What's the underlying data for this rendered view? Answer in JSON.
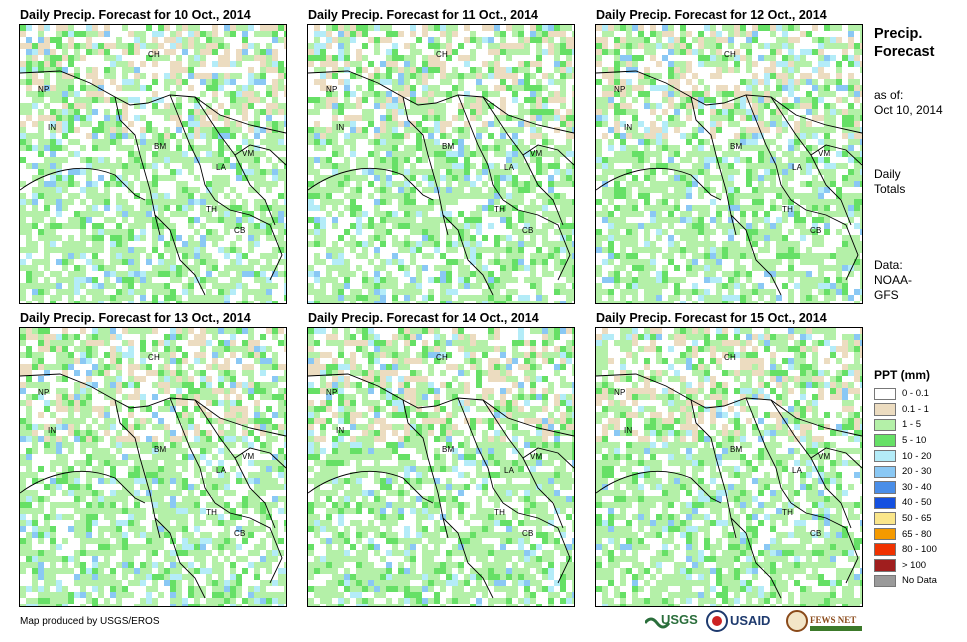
{
  "panels": [
    {
      "title": "Daily Precip. Forecast for 10 Oct., 2014",
      "labels": [
        "CH",
        "NP",
        "IN",
        "BM",
        "VM",
        "LA",
        "TH",
        "CB"
      ]
    },
    {
      "title": "Daily Precip. Forecast for 11 Oct., 2014",
      "labels": [
        "CH",
        "NP",
        "IN",
        "BM",
        "VM",
        "LA",
        "TH",
        "CB"
      ]
    },
    {
      "title": "Daily Precip. Forecast for 12 Oct., 2014",
      "labels": [
        "CH",
        "NP",
        "IN",
        "BM",
        "VM",
        "LA",
        "TH",
        "CB"
      ]
    },
    {
      "title": "Daily Precip. Forecast for 13 Oct., 2014",
      "labels": [
        "CH",
        "NP",
        "IN",
        "BM",
        "VM",
        "LA",
        "TH",
        "CB"
      ]
    },
    {
      "title": "Daily Precip. Forecast for 14 Oct., 2014",
      "labels": [
        "CH",
        "NP",
        "IN",
        "BM",
        "VM",
        "LA",
        "TH",
        "CB"
      ]
    },
    {
      "title": "Daily Precip. Forecast for 15 Oct., 2014",
      "labels": [
        "CH",
        "NP",
        "IN",
        "BM",
        "VM",
        "LA",
        "TH",
        "CB"
      ]
    }
  ],
  "sidebar": {
    "title_line1": "Precip.",
    "title_line2": "Forecast",
    "asof_line1": "as of:",
    "asof_line2": "Oct 10, 2014",
    "totals_line1": "Daily",
    "totals_line2": "Totals",
    "data_line1": "Data:",
    "data_line2": "NOAA-",
    "data_line3": "GFS"
  },
  "legend": {
    "title": "PPT (mm)",
    "items": [
      {
        "label": "0 - 0.1",
        "color": "#ffffff"
      },
      {
        "label": "0.1 - 1",
        "color": "#ecdcc0"
      },
      {
        "label": "1 - 5",
        "color": "#b4f0a8"
      },
      {
        "label": "5 - 10",
        "color": "#66e066"
      },
      {
        "label": "10 - 20",
        "color": "#b4ecf8"
      },
      {
        "label": "20 - 30",
        "color": "#8ac8f4"
      },
      {
        "label": "30 - 40",
        "color": "#4a8ee8"
      },
      {
        "label": "40 - 50",
        "color": "#1450e0"
      },
      {
        "label": "50 - 65",
        "color": "#fae68a"
      },
      {
        "label": "65 - 80",
        "color": "#f59a00"
      },
      {
        "label": "80 - 100",
        "color": "#f03200"
      },
      {
        "label": "> 100",
        "color": "#a01e1e"
      },
      {
        "label": "No Data",
        "color": "#9a9a9a"
      }
    ]
  },
  "footer": {
    "credit": "Map produced by USGS/EROS",
    "logo1": "USGS",
    "logo2": "USAID",
    "logo3": "FEWS NET"
  }
}
